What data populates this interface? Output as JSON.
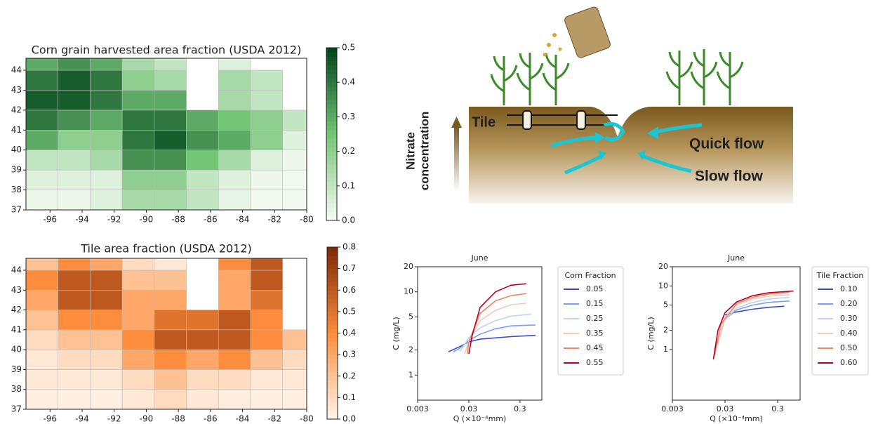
{
  "chart_data": [
    {
      "type": "heatmap",
      "title": "Corn grain harvested area fraction (USDA 2012)",
      "x_edges": [
        -97.5,
        -95.5,
        -93.5,
        -91.5,
        -89.5,
        -87.5,
        -85.5,
        -83.5,
        -81.5,
        -80
      ],
      "y_edges": [
        37,
        38,
        39,
        40,
        41,
        42,
        43,
        44,
        44.6
      ],
      "values": [
        [
          0.02,
          0.02,
          0.05,
          0.15,
          0.15,
          0.1,
          0.03,
          0.01,
          0.01
        ],
        [
          0.05,
          0.05,
          0.05,
          0.2,
          0.2,
          0.1,
          0.05,
          0.02,
          0.01
        ],
        [
          0.1,
          0.1,
          0.15,
          0.35,
          0.35,
          0.25,
          0.15,
          0.05,
          0.02
        ],
        [
          0.3,
          0.2,
          0.2,
          0.4,
          0.45,
          0.35,
          0.3,
          0.2,
          0.05
        ],
        [
          0.4,
          0.35,
          0.3,
          0.4,
          0.4,
          0.3,
          0.25,
          0.2,
          0.1
        ],
        [
          0.45,
          0.45,
          0.4,
          0.3,
          0.3,
          null,
          0.15,
          0.1,
          null
        ],
        [
          0.4,
          0.45,
          0.4,
          0.2,
          0.15,
          null,
          0.15,
          0.1,
          null
        ],
        [
          0.3,
          0.35,
          0.3,
          0.15,
          0.1,
          null,
          0.05,
          null,
          null
        ]
      ],
      "colormap": [
        "#f7fcf5",
        "#74c476",
        "#00441b"
      ],
      "clim": [
        0,
        0.5
      ],
      "xlim": [
        -97.5,
        -80
      ],
      "ylim": [
        37,
        44.6
      ],
      "xticks": [
        -96,
        -94,
        -92,
        -90,
        -88,
        -86,
        -84,
        -82,
        -80
      ],
      "yticks": [
        37,
        38,
        39,
        40,
        41,
        42,
        43,
        44
      ],
      "colorbar_ticks": [
        {
          "value": 0,
          "label": "0.0"
        },
        0.1,
        0.2,
        0.3,
        0.4,
        0.5
      ]
    },
    {
      "type": "heatmap",
      "title": "Tile area fraction (USDA 2012)",
      "x_edges": [
        -97.5,
        -95.5,
        -93.5,
        -91.5,
        -89.5,
        -87.5,
        -85.5,
        -83.5,
        -81.5,
        -80
      ],
      "y_edges": [
        37,
        38,
        39,
        40,
        41,
        42,
        43,
        44,
        44.6
      ],
      "values": [
        [
          0.02,
          0.02,
          0.02,
          0.05,
          0.1,
          0.05,
          0.03,
          0.02,
          0.02
        ],
        [
          0.05,
          0.05,
          0.05,
          0.1,
          0.2,
          0.1,
          0.1,
          0.05,
          0.05
        ],
        [
          0.05,
          0.1,
          0.1,
          0.3,
          0.4,
          0.3,
          0.4,
          0.2,
          0.1
        ],
        [
          0.1,
          0.2,
          0.2,
          0.4,
          0.6,
          0.6,
          0.6,
          0.4,
          0.2
        ],
        [
          0.2,
          0.4,
          0.4,
          0.3,
          0.5,
          0.5,
          0.6,
          0.4,
          null
        ],
        [
          0.3,
          0.6,
          0.6,
          0.3,
          0.3,
          null,
          0.3,
          0.5,
          null
        ],
        [
          0.4,
          0.6,
          0.6,
          0.2,
          0.2,
          null,
          0.3,
          0.6,
          null
        ],
        [
          0.2,
          0.4,
          0.3,
          0.1,
          0.05,
          null,
          0.4,
          0.6,
          null
        ]
      ],
      "colormap": [
        "#fff5eb",
        "#fd8d3c",
        "#7f2704"
      ],
      "clim": [
        0,
        0.8
      ],
      "xlim": [
        -97.5,
        -80
      ],
      "ylim": [
        37,
        44.6
      ],
      "xticks": [
        -96,
        -94,
        -92,
        -90,
        -88,
        -86,
        -84,
        -82,
        -80
      ],
      "yticks": [
        37,
        38,
        39,
        40,
        41,
        42,
        43,
        44
      ],
      "colorbar_ticks": [
        {
          "value": 0,
          "label": "0.0"
        },
        0.1,
        0.2,
        0.3,
        0.4,
        0.5,
        0.6,
        0.7,
        0.8
      ]
    },
    {
      "type": "line",
      "title": "June",
      "xlabel": "Q (×10⁻⁴mm)",
      "ylabel": "C (mg/L)",
      "log_x": true,
      "log_y": true,
      "xlim": [
        0.003,
        0.8
      ],
      "ylim": [
        0.5,
        20
      ],
      "xticks": [
        0.003,
        0.03,
        0.3
      ],
      "yticks": [
        1,
        2,
        5,
        10,
        20
      ],
      "legend_title": "Corn Fraction",
      "series": [
        {
          "name": "0.05",
          "color": "#3b4cc0",
          "x": [
            0.012,
            0.02,
            0.03,
            0.05,
            0.1,
            0.2,
            0.6
          ],
          "values": [
            1.9,
            2.2,
            2.5,
            2.7,
            2.8,
            2.9,
            3.0
          ]
        },
        {
          "name": "0.15",
          "color": "#7b9ff9",
          "x": [
            0.015,
            0.02,
            0.03,
            0.05,
            0.1,
            0.2,
            0.6
          ],
          "values": [
            1.9,
            2.1,
            2.6,
            3.1,
            3.6,
            3.9,
            4.0
          ]
        },
        {
          "name": "0.25",
          "color": "#c0d4f5",
          "x": [
            0.02,
            0.03,
            0.05,
            0.1,
            0.2,
            0.5
          ],
          "values": [
            1.9,
            2.8,
            3.7,
            4.5,
            5.1,
            5.4
          ]
        },
        {
          "name": "0.35",
          "color": "#f2cbb7",
          "x": [
            0.025,
            0.03,
            0.05,
            0.1,
            0.2,
            0.4
          ],
          "values": [
            1.8,
            2.6,
            4.5,
            6,
            7,
            7.3
          ]
        },
        {
          "name": "0.45",
          "color": "#ee8468",
          "x": [
            0.028,
            0.03,
            0.05,
            0.1,
            0.2,
            0.4
          ],
          "values": [
            1.8,
            2.5,
            5.5,
            7.8,
            9,
            9.5
          ]
        },
        {
          "name": "0.55",
          "color": "#b40426",
          "x": [
            0.03,
            0.035,
            0.05,
            0.1,
            0.2,
            0.4
          ],
          "values": [
            1.8,
            3,
            6.5,
            10,
            12,
            12.5
          ]
        }
      ]
    },
    {
      "type": "line",
      "title": "June",
      "xlabel": "Q (×10⁻⁴mm)",
      "ylabel": "C (mg/L)",
      "log_x": true,
      "log_y": true,
      "xlim": [
        0.003,
        0.8
      ],
      "ylim": [
        0.16,
        20
      ],
      "xticks": [
        0.003,
        0.03,
        0.3
      ],
      "yticks": [
        1,
        2,
        5,
        10,
        20
      ],
      "legend_title": "Tile Fraction",
      "series": [
        {
          "name": "0.10",
          "color": "#3b4cc0",
          "x": [
            0.03,
            0.05,
            0.1,
            0.2,
            0.4
          ],
          "values": [
            3.5,
            3.9,
            4.3,
            4.6,
            4.8
          ]
        },
        {
          "name": "0.20",
          "color": "#7b9ff9",
          "x": [
            0.025,
            0.03,
            0.05,
            0.1,
            0.2,
            0.5
          ],
          "values": [
            2,
            3,
            4.2,
            5,
            5.5,
            5.8
          ]
        },
        {
          "name": "0.30",
          "color": "#c0d4f5",
          "x": [
            0.022,
            0.03,
            0.05,
            0.1,
            0.2,
            0.5
          ],
          "values": [
            1.2,
            3,
            4.5,
            5.5,
            6.2,
            6.6
          ]
        },
        {
          "name": "0.40",
          "color": "#f2cbb7",
          "x": [
            0.02,
            0.03,
            0.05,
            0.1,
            0.2,
            0.5
          ],
          "values": [
            1,
            3.2,
            5,
            6.2,
            6.9,
            7.3
          ]
        },
        {
          "name": "0.50",
          "color": "#ee8468",
          "x": [
            0.019,
            0.025,
            0.05,
            0.1,
            0.2,
            0.5
          ],
          "values": [
            0.8,
            2.5,
            5.3,
            6.6,
            7.4,
            7.9
          ]
        },
        {
          "name": "0.60",
          "color": "#b40426",
          "x": [
            0.018,
            0.022,
            0.03,
            0.05,
            0.1,
            0.2,
            0.6
          ],
          "values": [
            0.7,
            2,
            3.8,
            5.6,
            7,
            7.8,
            8.3
          ]
        }
      ]
    }
  ],
  "diagram": {
    "tile": "Tile",
    "quick_flow": "Quick flow",
    "slow_flow": "Slow flow",
    "axis_label": [
      "Nitrate",
      "concentration"
    ]
  }
}
